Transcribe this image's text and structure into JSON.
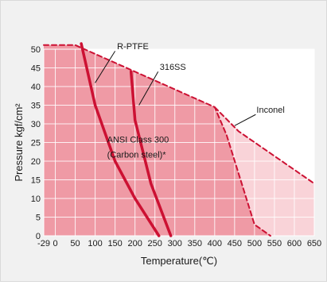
{
  "chart_data": {
    "type": "area",
    "title": "",
    "xlabel": "Temperature(℃)",
    "ylabel": "Pressure kgf/cm²",
    "xlim": [
      -29,
      650
    ],
    "ylim": [
      0,
      50
    ],
    "grid": true,
    "x_ticks": [
      "-29",
      "0",
      "50",
      "100",
      "150",
      "200",
      "250",
      "300",
      "350",
      "400",
      "450",
      "500",
      "550",
      "600",
      "650"
    ],
    "y_ticks": [
      "0",
      "5",
      "10",
      "15",
      "20",
      "25",
      "30",
      "35",
      "40",
      "45",
      "50"
    ],
    "colors": {
      "region_carbon_steel": "#ef9aa5",
      "region_inconel": "#f9d3d8",
      "curve": "#cc1133",
      "grid": "#ffffff",
      "background": "#f1f1f1"
    },
    "series": [
      {
        "name": "ANSI Class 300 (Carbon steel)*",
        "style": "dashed",
        "x": [
          -29,
          50,
          400,
          430,
          500,
          540
        ],
        "y": [
          51.1,
          51.1,
          34.5,
          27,
          3,
          0
        ]
      },
      {
        "name": "Inconel",
        "style": "dashed",
        "x": [
          400,
          460,
          650
        ],
        "y": [
          34.5,
          28,
          14
        ]
      },
      {
        "name": "R-PTFE",
        "style": "solid",
        "x": [
          65,
          100,
          150,
          200,
          260
        ],
        "y": [
          51.5,
          35,
          20,
          10,
          0
        ]
      },
      {
        "name": "316SS",
        "style": "solid",
        "x": [
          190,
          200,
          240,
          290
        ],
        "y": [
          44,
          31,
          14,
          0
        ]
      }
    ],
    "annotations": [
      {
        "text": "R-PTFE",
        "x": 155,
        "y": 50
      },
      {
        "text": "316SS",
        "x": 262,
        "y": 44.5
      },
      {
        "text": "Inconel",
        "x": 505,
        "y": 33
      },
      {
        "text": "ANSI Class 300",
        "x": 130,
        "y": 25
      },
      {
        "text": "(Carbon steel)*",
        "x": 130,
        "y": 21
      }
    ]
  }
}
